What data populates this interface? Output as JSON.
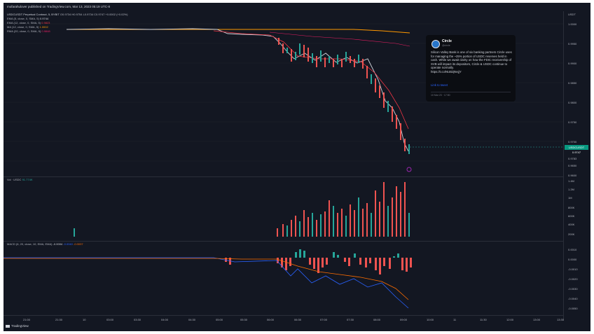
{
  "header": {
    "published_text": "mofarahulover published on TradingView.com, Mar 13, 2023 05:19 UTC-8"
  },
  "main_pane": {
    "symbol_line": "USDCUSDT Perpetual Contract, 5, BYBIT",
    "ohlc": "O0.9734 H0.9754 L0.9734 C0.9747 +0.0002 (+0.02%)",
    "indicators": [
      {
        "label": "EMA (5, close, 0, SMA, 5)",
        "value": "0.9744",
        "color": "#d1d4dc"
      },
      {
        "label": "EMA (12, close, 0, SMA, 5)",
        "value": "0.9823",
        "color": "#f23645"
      },
      {
        "label": "MA (12, close, 0, SMA, 5)",
        "value": "1.0002",
        "color": "#ff9800"
      },
      {
        "label": "RMA (20, close, 0, SMA, 9)",
        "value": "0.9848",
        "color": "#e91e63"
      }
    ],
    "price_axis": [
      "USDT",
      "1.0000",
      "0.9950",
      "0.9900",
      "0.9850",
      "0.9800",
      "0.9750",
      "0.9700",
      "0.9650",
      "0.9600",
      "0.9550"
    ],
    "current_symbol_tag": "USDCUSDT",
    "current_price": "0.9747",
    "price_tag_below": "0.9783"
  },
  "volume_pane": {
    "label": "Vol · USDC",
    "value": "91.774K",
    "axis": [
      "1.4M",
      "1.2M",
      "1M",
      "800K",
      "600K",
      "400K",
      "200K"
    ]
  },
  "macd_pane": {
    "label": "MACD (6, 20, close, 10, EMA, EMA)",
    "v1": "-0.0004",
    "v2": "-0.0040",
    "v3": "-0.0037",
    "axis": [
      "0.0010",
      "0.0000",
      "-0.0010",
      "-0.0020",
      "-0.0030",
      "-0.0040",
      "-0.0050"
    ]
  },
  "time_axis": [
    "21:00",
    "21:30",
    "10",
    "03:00",
    "03:30",
    "04:00",
    "04:30",
    "05:00",
    "05:30",
    "06:00",
    "06:30",
    "07:00",
    "07:30",
    "08:00",
    "09:00",
    "10:00",
    "11",
    "11:30",
    "12:00",
    "13:00",
    "13:30"
  ],
  "tweet": {
    "name": "Circle",
    "handle": "@circle",
    "body": "Silicon Valley Bank is one of six banking partners Circle uses for managing the ~25% portion of USDC reserves held in cash. While we await clarity on how the FDIC receivership of SVB will impact its depositors, Circle & USDC continue to operate normally.",
    "link": "https://t.co/NUB2jNejjY",
    "cta": "Link to tweet",
    "date": "10 Mar 23 · 17:50"
  },
  "footer": {
    "brand": "TradingView"
  },
  "colors": {
    "up": "#26a69a",
    "down": "#ef5350",
    "background": "#131722"
  }
}
